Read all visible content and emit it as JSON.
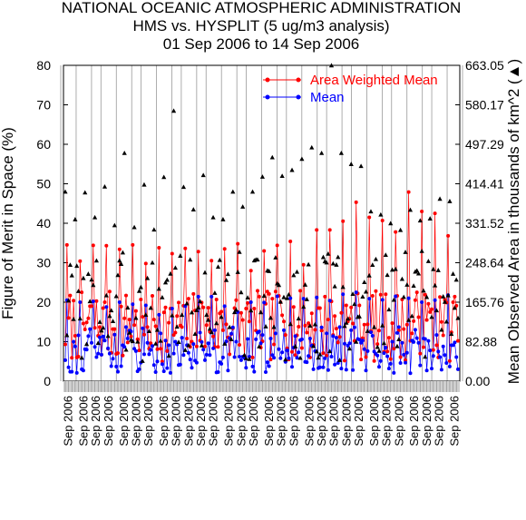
{
  "chart_data": {
    "type": "line",
    "title_lines": [
      "NATIONAL OCEANIC ATMOSPHERIC ADMINISTRATION",
      "HMS vs. HYSPLIT (5 ug/m3 analysis)",
      "01 Sep 2006 to 14 Sep 2006"
    ],
    "ylabel": "Figure of Merit in Space (%)",
    "y2label": "Mean Observed Area in thousands of km^2 (▲)",
    "ylim": [
      0,
      80
    ],
    "yticks": [
      "0",
      "10",
      "20",
      "30",
      "40",
      "50",
      "60",
      "70",
      "80"
    ],
    "y2lim": [
      0,
      663.05
    ],
    "y2ticks": [
      "0.00",
      "82.88",
      "165.76",
      "248.64",
      "331.52",
      "414.41",
      "497.29",
      "580.17",
      "663.05"
    ],
    "xtick_labels": [
      "Sep 2006",
      "Sep 2006",
      "Sep 2006",
      "Sep 2006",
      "Sep 2006",
      "Sep 2006",
      "Sep 2006",
      "Sep 2006",
      "Sep 2006",
      "Sep 2006",
      "Sep 2006",
      "Sep 2006",
      "Sep 2006",
      "Sep 2006",
      "Sep 2006",
      "Sep 2006",
      "Sep 2006",
      "Sep 2006",
      "Sep 2006",
      "Sep 2006",
      "Sep 2006",
      "Sep 2006",
      "Sep 2006",
      "Sep 2006",
      "Sep 2006",
      "Sep 2006",
      "Sep 2006",
      "Sep 2006",
      "Sep 2006",
      "Sep 2006"
    ],
    "legend_position": "top-right",
    "n_points": 240,
    "series": [
      {
        "name": "Area Weighted Mean",
        "color": "#ff0000",
        "marker": "circle",
        "pattern": {
          "base": 14,
          "amp": 9,
          "peaks": [
            34.5,
            30.4,
            34.4,
            34.3,
            33.4,
            34.5,
            29.8,
            33.8,
            32.3,
            33.6,
            32.8,
            30.5,
            33.5,
            34.8,
            28.0,
            33.0,
            34.4,
            35.4,
            29.5,
            38.3,
            38.3,
            40.5,
            45.3,
            41.5,
            40.7,
            37.8,
            47.9,
            43.0,
            42.5,
            36.8
          ]
        }
      },
      {
        "name": "Mean",
        "color": "#0000ff",
        "marker": "circle",
        "pattern": {
          "base": 8,
          "amp": 6,
          "peaks": [
            20.5,
            20.0,
            20.2,
            18.8,
            20.0,
            19.5,
            19.2,
            16.8,
            18.4,
            19.0,
            21.4,
            21.4,
            19.0,
            17.5,
            20.0,
            19.9,
            21.5,
            21.0,
            20.9,
            21.2,
            20.4,
            22.0,
            22.5,
            20.9,
            20.6,
            21.5,
            21.0,
            20.0,
            20.5,
            21.8
          ]
        }
      },
      {
        "name": "Mean Observed Area",
        "color": "#000000",
        "marker": "triangle",
        "axis": "y2",
        "values": [
          48.0,
          41.0,
          47.8,
          41.5,
          49.3,
          39.5,
          57.8,
          39.0,
          49.8,
          38.4,
          51.7,
          68.5,
          49.2,
          43.5,
          52.2,
          41.5,
          41.0,
          48.0,
          44.2,
          48.0,
          51.8,
          56.7,
          52.0,
          53.5,
          56.3,
          59.2,
          57.8,
          80.0,
          57.8,
          55.0,
          54.5,
          43.0,
          42.2,
          40.0,
          38.3,
          43.4,
          40.7,
          41.2,
          46.2,
          45.6
        ]
      }
    ],
    "grid": "vertical-lines"
  }
}
